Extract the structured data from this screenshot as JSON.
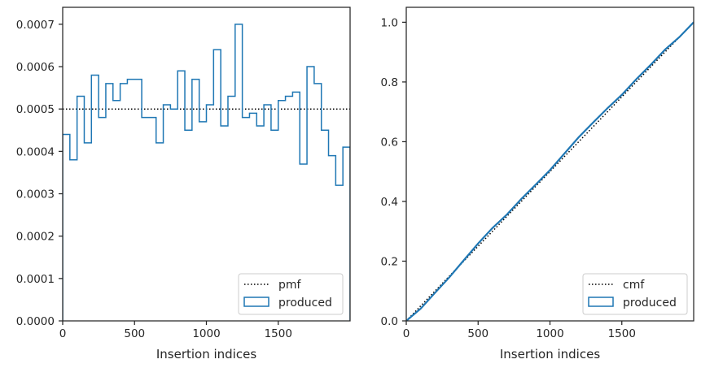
{
  "colors": {
    "produced": "#1f77b4",
    "reference": "#000000",
    "axes": "#262626",
    "legend_border": "#cccccc"
  },
  "chart_data": [
    {
      "type": "step",
      "title": "",
      "xlabel": "Insertion indices",
      "ylabel": "",
      "xlim": [
        0,
        2000
      ],
      "ylim": [
        0,
        0.00074
      ],
      "grid": false,
      "legend_placement": "lower-right",
      "x_ticks": [
        0,
        500,
        1000,
        1500
      ],
      "x_tick_labels": [
        "0",
        "500",
        "1000",
        "1500"
      ],
      "y_ticks": [
        0,
        0.0001,
        0.0002,
        0.0003,
        0.0004,
        0.0005,
        0.0006,
        0.0007
      ],
      "y_tick_labels": [
        "0.0000",
        "0.0001",
        "0.0002",
        "0.0003",
        "0.0004",
        "0.0005",
        "0.0006",
        "0.0007"
      ],
      "bin_width": 50,
      "series": [
        {
          "name": "pmf",
          "style": "dotted",
          "x": [
            0,
            2000
          ],
          "y": [
            0.0005,
            0.0005
          ]
        },
        {
          "name": "produced",
          "style": "step-histogram",
          "bin_edges": [
            0,
            50,
            100,
            150,
            200,
            250,
            300,
            350,
            400,
            450,
            500,
            550,
            600,
            650,
            700,
            750,
            800,
            850,
            900,
            950,
            1000,
            1050,
            1100,
            1150,
            1200,
            1250,
            1300,
            1350,
            1400,
            1450,
            1500,
            1550,
            1600,
            1650,
            1700,
            1750,
            1800,
            1850,
            1900,
            1950,
            2000
          ],
          "values": [
            0.00044,
            0.00038,
            0.00053,
            0.00042,
            0.00058,
            0.00048,
            0.00056,
            0.00052,
            0.00056,
            0.00057,
            0.00057,
            0.00048,
            0.00048,
            0.00042,
            0.00051,
            0.0005,
            0.00059,
            0.00045,
            0.00057,
            0.00047,
            0.00051,
            0.00064,
            0.00046,
            0.00053,
            0.0007,
            0.00048,
            0.00049,
            0.00046,
            0.00051,
            0.00045,
            0.00052,
            0.00053,
            0.00054,
            0.00037,
            0.0006,
            0.00056,
            0.00045,
            0.00039,
            0.00032,
            0.00041
          ]
        }
      ]
    },
    {
      "type": "line",
      "title": "",
      "xlabel": "Insertion indices",
      "ylabel": "",
      "xlim": [
        0,
        2000
      ],
      "ylim": [
        0,
        1.05
      ],
      "grid": false,
      "legend_placement": "lower-right",
      "x_ticks": [
        0,
        500,
        1000,
        1500
      ],
      "x_tick_labels": [
        "0",
        "500",
        "1000",
        "1500"
      ],
      "y_ticks": [
        0,
        0.2,
        0.4,
        0.6,
        0.8,
        1.0
      ],
      "y_tick_labels": [
        "0.0",
        "0.2",
        "0.4",
        "0.6",
        "0.8",
        "1.0"
      ],
      "series": [
        {
          "name": "cmf",
          "style": "dotted",
          "x": [
            0,
            2000
          ],
          "y": [
            0,
            1
          ]
        },
        {
          "name": "produced",
          "style": "solid",
          "x": [
            0,
            100,
            200,
            300,
            400,
            500,
            600,
            700,
            800,
            900,
            1000,
            1100,
            1200,
            1300,
            1400,
            1500,
            1600,
            1700,
            1800,
            1900,
            2000
          ],
          "y": [
            0,
            0.041,
            0.094,
            0.146,
            0.203,
            0.259,
            0.311,
            0.356,
            0.408,
            0.456,
            0.505,
            0.56,
            0.615,
            0.664,
            0.712,
            0.757,
            0.809,
            0.857,
            0.908,
            0.95,
            1.0
          ]
        }
      ]
    }
  ]
}
